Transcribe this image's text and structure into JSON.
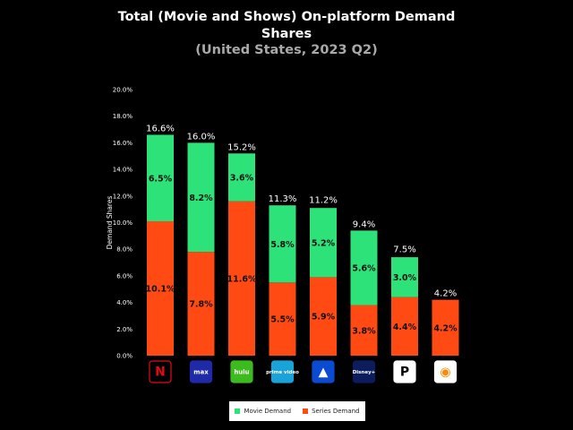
{
  "title_line1": "Total (Movie and Shows) On-platform Demand",
  "title_line2": "Shares",
  "subtitle": "(United States, 2023 Q2)",
  "colors": {
    "movie": "#2ee27a",
    "series": "#ff4a14",
    "background": "#000000"
  },
  "chart_data": {
    "type": "bar",
    "stacked": true,
    "ylabel": "Demand Shares",
    "xlabel": "",
    "ylim": [
      0,
      20
    ],
    "yticks": [
      "0.0%",
      "2.0%",
      "4.0%",
      "6.0%",
      "8.0%",
      "10.0%",
      "12.0%",
      "14.0%",
      "16.0%",
      "18.0%",
      "20.0%"
    ],
    "categories": [
      "netflix",
      "max",
      "hulu",
      "prime video",
      "paramount+",
      "disney+",
      "peacock",
      "discovery+"
    ],
    "totals": [
      "16.6%",
      "16.0%",
      "15.2%",
      "11.3%",
      "11.2%",
      "9.4%",
      "7.5%",
      "4.2%"
    ],
    "totals_values": [
      16.6,
      16.0,
      15.2,
      11.3,
      11.2,
      9.4,
      7.5,
      4.2
    ],
    "series": [
      {
        "name": "Series Demand",
        "values": [
          10.1,
          7.8,
          11.6,
          5.5,
          5.9,
          3.8,
          4.4,
          4.2
        ],
        "labels": [
          "10.1%",
          "7.8%",
          "11.6%",
          "5.5%",
          "5.9%",
          "3.8%",
          "4.4%",
          "4.2%"
        ]
      },
      {
        "name": "Movie Demand",
        "values": [
          6.5,
          8.2,
          3.6,
          5.8,
          5.2,
          5.6,
          3.0,
          0
        ],
        "labels": [
          "6.5%",
          "8.2%",
          "3.6%",
          "5.8%",
          "5.2%",
          "5.6%",
          "3.0%",
          ""
        ]
      }
    ],
    "logos": [
      {
        "name": "netflix-logo",
        "text": "N",
        "fg": "#e50914",
        "bg": "#000000",
        "border": "#e50914"
      },
      {
        "name": "max-logo",
        "text": "max",
        "fg": "#ffffff",
        "bg": "#1f2aa8",
        "border": "#1f2aa8"
      },
      {
        "name": "hulu-logo",
        "text": "hulu",
        "fg": "#ffffff",
        "bg": "#3cbb1e",
        "border": "#3cbb1e"
      },
      {
        "name": "prime-video-logo",
        "text": "prime video",
        "fg": "#ffffff",
        "bg": "#1aa3d9",
        "border": "#1aa3d9"
      },
      {
        "name": "paramount-logo",
        "text": "▲",
        "fg": "#ffffff",
        "bg": "#0b4bd1",
        "border": "#0b4bd1"
      },
      {
        "name": "disney-plus-logo",
        "text": "Disney+",
        "fg": "#ffffff",
        "bg": "#0c1d5e",
        "border": "#0c1d5e"
      },
      {
        "name": "peacock-logo",
        "text": "P",
        "fg": "#000000",
        "bg": "#ffffff",
        "border": "#ffffff"
      },
      {
        "name": "discovery-plus-logo",
        "text": "◉",
        "fg": "#ff8a00",
        "bg": "#ffffff",
        "border": "#ffffff"
      }
    ],
    "legend": {
      "position": "bottom",
      "entries": [
        "Movie Demand",
        "Series Demand"
      ]
    },
    "grid": false
  }
}
